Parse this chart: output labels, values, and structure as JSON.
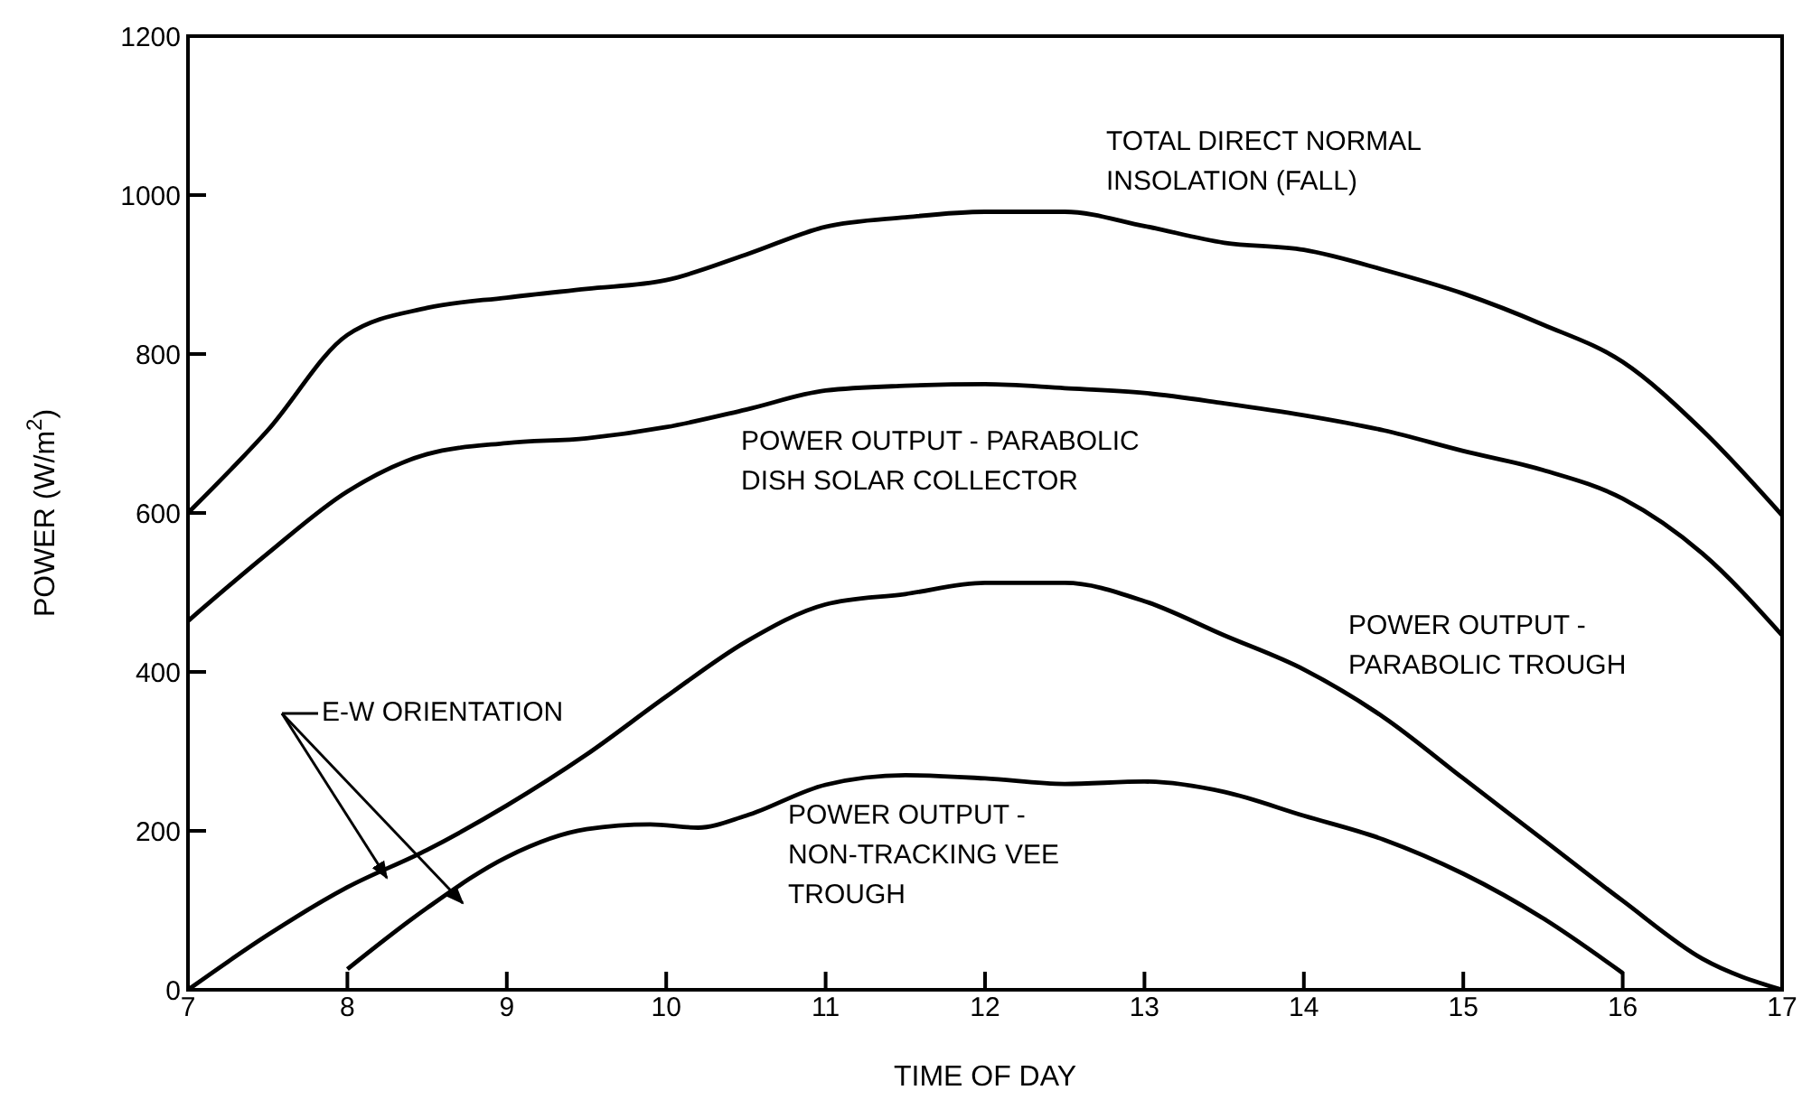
{
  "chart_data": {
    "type": "line",
    "xlabel": "TIME OF DAY",
    "ylabel": "POWER (W/m$^{2}$)",
    "xlim": [
      7,
      17
    ],
    "xticks": [
      7,
      8,
      9,
      10,
      11,
      12,
      13,
      14,
      15,
      16,
      17
    ],
    "ylim": [
      0,
      1200
    ],
    "yticks": [
      0,
      200,
      400,
      600,
      800,
      1000,
      1200
    ],
    "marker": "none",
    "line_style": "solid",
    "annotations": [
      "E-W ORIENTATION"
    ],
    "series": [
      {
        "name": "TOTAL DIRECT NORMAL INSOLATION (FALL)",
        "color": "#000000",
        "x": [
          7,
          7.5,
          8,
          8.5,
          9,
          9.5,
          10,
          10.5,
          11,
          11.5,
          12,
          12.5,
          13,
          13.5,
          14,
          14.5,
          15,
          15.5,
          16,
          16.5,
          17
        ],
        "values": [
          600,
          704,
          824,
          858,
          871,
          882,
          893,
          925,
          960,
          972,
          979,
          979,
          961,
          940,
          931,
          906,
          876,
          837,
          790,
          704,
          597
        ]
      },
      {
        "name": "POWER OUTPUT - PARABOLIC DISH SOLAR COLLECTOR",
        "color": "#000000",
        "x": [
          7,
          7.5,
          8,
          8.5,
          9,
          9.5,
          10,
          10.5,
          11,
          11.5,
          12,
          12.5,
          13,
          13.5,
          14,
          14.5,
          15,
          15.5,
          16,
          16.5,
          17
        ],
        "values": [
          464,
          549,
          627,
          674,
          688,
          694,
          708,
          730,
          754,
          760,
          762,
          757,
          751,
          738,
          723,
          704,
          678,
          654,
          618,
          549,
          446
        ]
      },
      {
        "name": "POWER OUTPUT - PARABOLIC TROUGH",
        "color": "#000000",
        "x": [
          7,
          7.5,
          8,
          8.5,
          9,
          9.5,
          10,
          10.5,
          11,
          11.5,
          12,
          12.5,
          13,
          13.5,
          14,
          14.5,
          15,
          15.5,
          16,
          16.5,
          17
        ],
        "values": [
          0,
          69,
          129,
          176,
          232,
          296,
          369,
          438,
          485,
          498,
          512,
          512,
          489,
          446,
          403,
          343,
          266,
          189,
          112,
          39,
          0
        ]
      },
      {
        "name": "POWER OUTPUT - NON-TRACKING VEE TROUGH",
        "color": "#000000",
        "x": [
          8,
          8.5,
          9,
          9.5,
          9.9,
          10.2,
          10.5,
          11,
          11.5,
          12,
          12.5,
          13,
          13.5,
          14,
          14.5,
          15,
          15.5,
          16
        ],
        "values": [
          26,
          103,
          167,
          202,
          208,
          204,
          219,
          258,
          270,
          266,
          259,
          262,
          249,
          219,
          189,
          146,
          90,
          21
        ]
      }
    ]
  }
}
